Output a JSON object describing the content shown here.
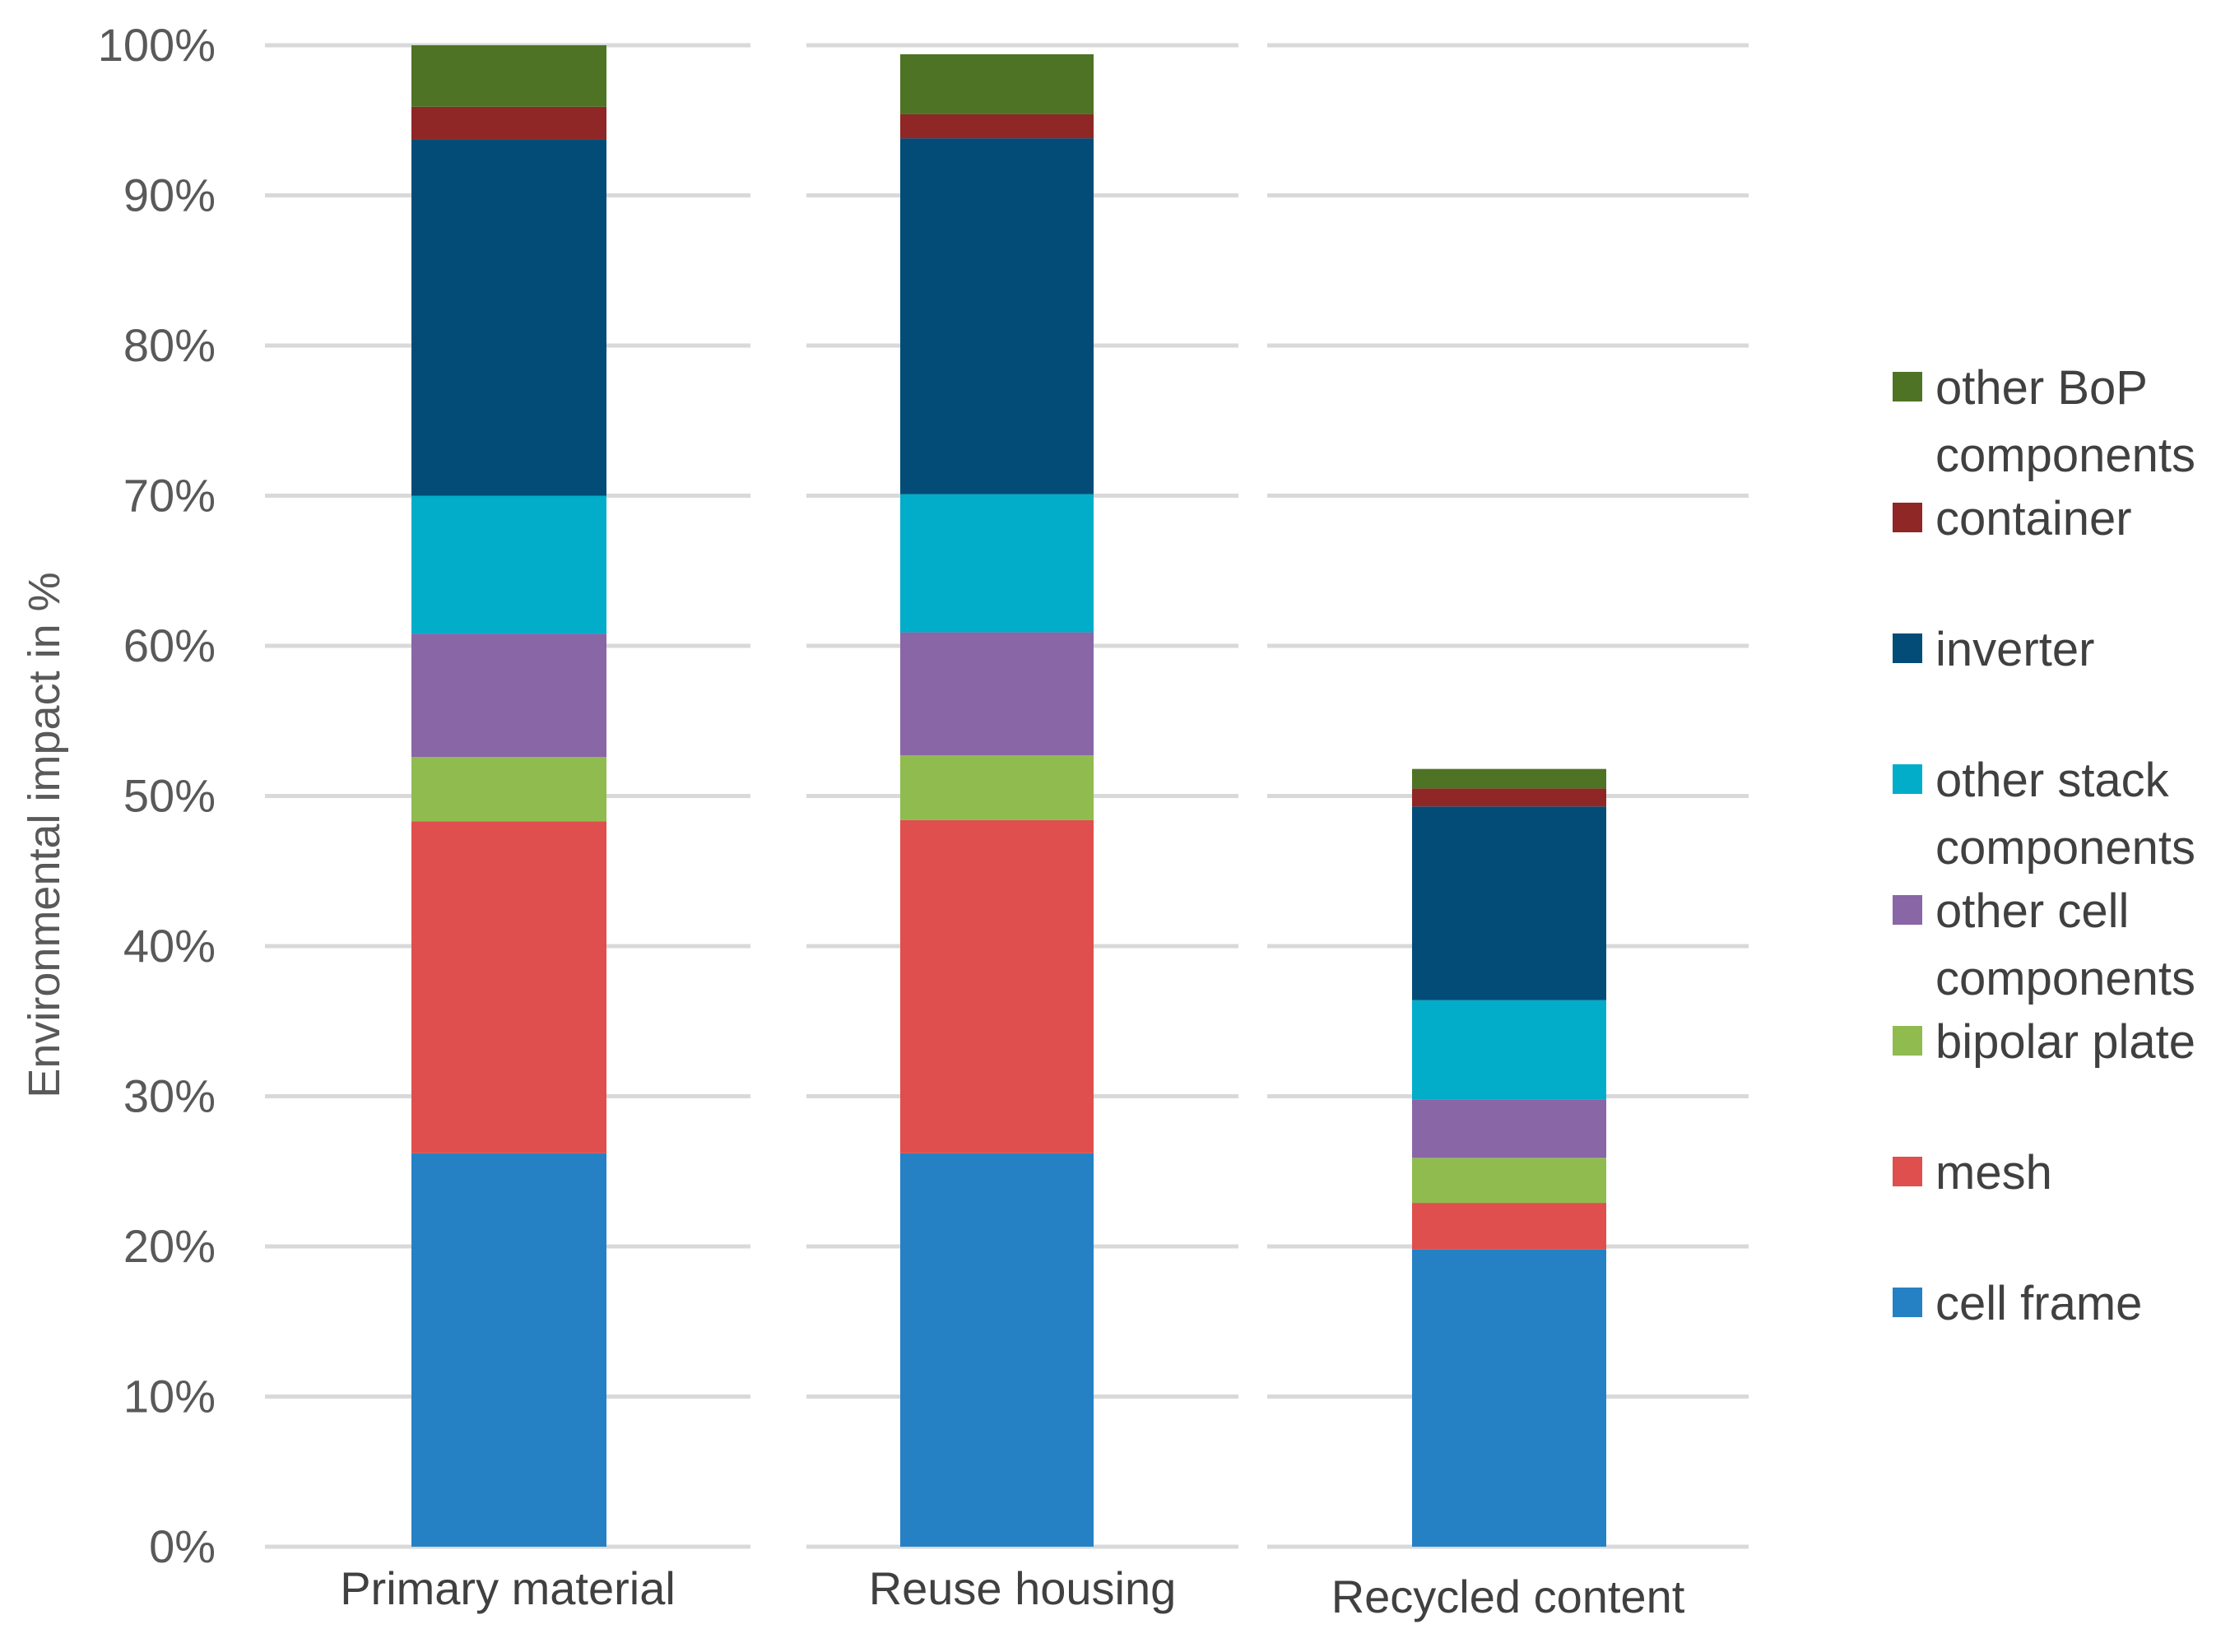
{
  "chart_data": {
    "type": "bar",
    "stacked": true,
    "title": "",
    "xlabel": "",
    "ylabel": "Environmental impact in %",
    "ylim": [
      0,
      100
    ],
    "yticks": [
      "0%",
      "10%",
      "20%",
      "30%",
      "40%",
      "50%",
      "60%",
      "70%",
      "80%",
      "90%",
      "100%"
    ],
    "grid": true,
    "legend_position": "right",
    "categories": [
      "Primary material",
      "Reuse housing",
      "Recycled content"
    ],
    "series": [
      {
        "name": "cell frame",
        "color": "#2581c4",
        "values": [
          26.2,
          26.2,
          19.8
        ]
      },
      {
        "name": "mesh",
        "color": "#de4f4d",
        "values": [
          22.1,
          22.2,
          3.1
        ]
      },
      {
        "name": "bipolar plate",
        "color": "#8fbb4f",
        "values": [
          4.3,
          4.3,
          3.0
        ]
      },
      {
        "name": "other cell components",
        "color": "#8966a6",
        "values": [
          8.2,
          8.2,
          3.9
        ]
      },
      {
        "name": "other stack components",
        "color": "#01adc9",
        "values": [
          9.2,
          9.2,
          6.6
        ]
      },
      {
        "name": "inverter",
        "color": "#034c77",
        "values": [
          23.7,
          23.7,
          12.9
        ]
      },
      {
        "name": "container",
        "color": "#8e2725",
        "values": [
          2.2,
          1.6,
          1.2
        ]
      },
      {
        "name": "other BoP components",
        "color": "#4e7325",
        "values": [
          4.1,
          4.0,
          1.3
        ]
      }
    ]
  },
  "legend": {
    "items": [
      {
        "key": "other BoP components",
        "lines": [
          "other BoP",
          "components"
        ],
        "color": "#4e7325"
      },
      {
        "key": "container",
        "lines": [
          "container"
        ],
        "color": "#8e2725"
      },
      {
        "key": "inverter",
        "lines": [
          "inverter"
        ],
        "color": "#034c77"
      },
      {
        "key": "other stack components",
        "lines": [
          "other stack",
          "components"
        ],
        "color": "#01adc9"
      },
      {
        "key": "other cell components",
        "lines": [
          "other cell",
          "components"
        ],
        "color": "#8966a6"
      },
      {
        "key": "bipolar plate",
        "lines": [
          "bipolar plate"
        ],
        "color": "#8fbb4f"
      },
      {
        "key": "mesh",
        "lines": [
          "mesh"
        ],
        "color": "#de4f4d"
      },
      {
        "key": "cell frame",
        "lines": [
          "cell frame"
        ],
        "color": "#2581c4"
      }
    ]
  }
}
